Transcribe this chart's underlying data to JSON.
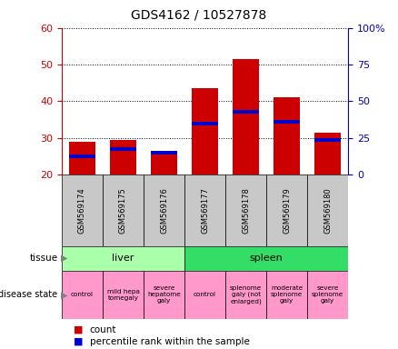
{
  "title": "GDS4162 / 10527878",
  "samples": [
    "GSM569174",
    "GSM569175",
    "GSM569176",
    "GSM569177",
    "GSM569178",
    "GSM569179",
    "GSM569180"
  ],
  "red_tops": [
    29.0,
    29.5,
    26.0,
    43.5,
    51.5,
    41.0,
    31.5
  ],
  "blue_positions": [
    25.0,
    27.0,
    26.0,
    34.0,
    37.0,
    34.5,
    29.5
  ],
  "ylim_left": [
    20,
    60
  ],
  "yticks_left": [
    20,
    30,
    40,
    50,
    60
  ],
  "yticks_right": [
    0,
    25,
    50,
    75,
    100
  ],
  "ytick_labels_right": [
    "0",
    "25",
    "50",
    "75",
    "100%"
  ],
  "tissue_groups": [
    {
      "label": "liver",
      "start": 0,
      "end": 3,
      "color": "#AAFFAA"
    },
    {
      "label": "spleen",
      "start": 3,
      "end": 7,
      "color": "#33DD66"
    }
  ],
  "disease_states": [
    {
      "label": "control",
      "start": 0,
      "end": 1
    },
    {
      "label": "mild hepa\ntomegaly",
      "start": 1,
      "end": 2
    },
    {
      "label": "severe\nhepatome\ngaly",
      "start": 2,
      "end": 3
    },
    {
      "label": "control",
      "start": 3,
      "end": 4
    },
    {
      "label": "splenome\ngaly (not\nenlarged)",
      "start": 4,
      "end": 5
    },
    {
      "label": "moderate\nsplenome\ngaly",
      "start": 5,
      "end": 6
    },
    {
      "label": "severe\nsplenome\ngaly",
      "start": 6,
      "end": 7
    }
  ],
  "disease_color": "#FF99CC",
  "sample_bg": "#C8C8C8",
  "bar_color_red": "#CC0000",
  "bar_color_blue": "#0000CC",
  "bar_width": 0.65,
  "left_axis_color": "#CC0000",
  "right_axis_color": "#0000BB"
}
